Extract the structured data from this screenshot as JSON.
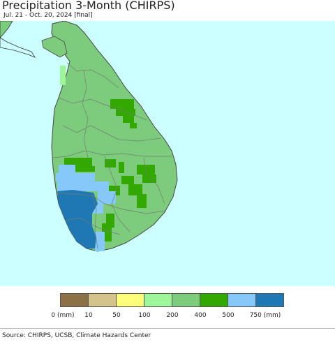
{
  "title": "Precipitation 3-Month (CHIRPS)",
  "subtitle": "Jul. 21 - Oct. 20, 2024 [final]",
  "source": "Source: CHIRPS, UCSB, Climate Hazards Center",
  "map": {
    "ocean_color": "#ccffff",
    "land_color": "#7dcc7d",
    "border_color": "#6f7f6f"
  },
  "legend": {
    "bins": [
      {
        "color": "#8b7048"
      },
      {
        "color": "#d4c38b"
      },
      {
        "color": "#ffff7a"
      },
      {
        "color": "#9ef59a"
      },
      {
        "color": "#7dcc7d"
      },
      {
        "color": "#32a800"
      },
      {
        "color": "#87c8fa"
      },
      {
        "color": "#1f78b4"
      }
    ],
    "labels": [
      "0 (mm)",
      "10",
      "50",
      "100",
      "200",
      "400",
      "500",
      "750 (mm)"
    ]
  }
}
